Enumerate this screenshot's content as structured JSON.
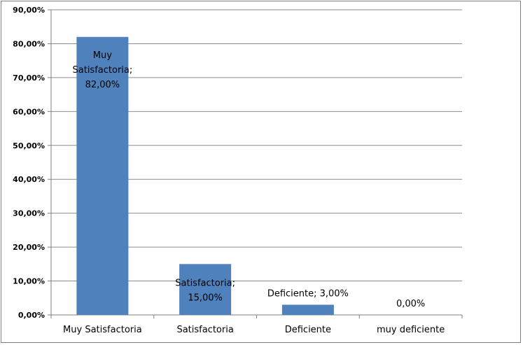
{
  "chart_data": {
    "type": "bar",
    "categories": [
      "Muy Satisfactoria",
      "Satisfactoria",
      "Deficiente",
      "muy deficiente"
    ],
    "values": [
      82.0,
      15.0,
      3.0,
      0.0
    ],
    "y_ticks": [
      "0,00%",
      "10,00%",
      "20,00%",
      "30,00%",
      "40,00%",
      "50,00%",
      "60,00%",
      "70,00%",
      "80,00%",
      "90,00%"
    ],
    "data_labels": [
      [
        "Muy",
        "Satisfactoria;",
        "82,00%"
      ],
      [
        "Satisfactoria;",
        "15,00%"
      ],
      [
        "Deficiente; 3,00%"
      ],
      [
        "0,00%"
      ]
    ],
    "ylim": [
      0,
      90
    ],
    "grid": true,
    "bar_color": "#4F81BD",
    "grid_color": "#8c8c8c",
    "title": "",
    "xlabel": "",
    "ylabel": ""
  }
}
